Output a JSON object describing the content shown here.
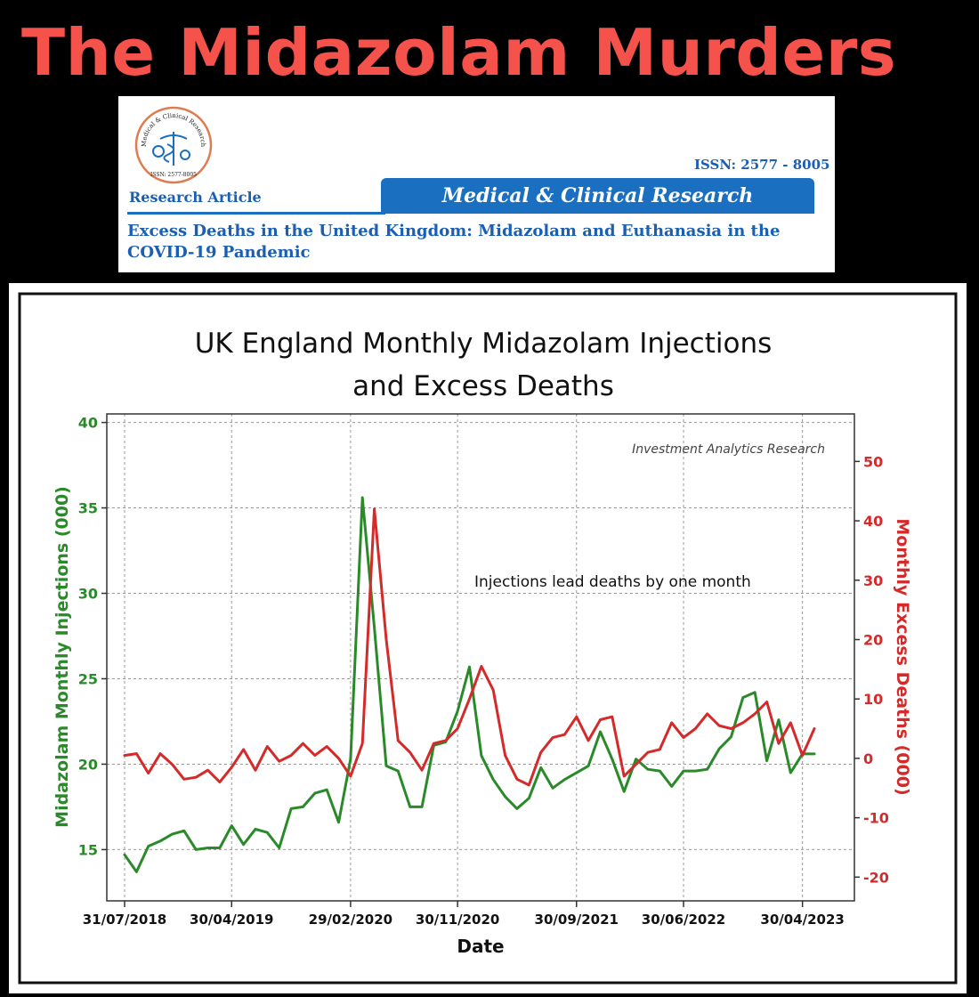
{
  "headline": "The Midazolam Murders",
  "banner": {
    "logo_text_top": "Medical & Clinical Research",
    "logo_issn": "ISSN: 2577-8005",
    "article_type": "Research Article",
    "issn": "ISSN: 2577 - 8005",
    "journal": "Medical & Clinical Research",
    "article_title": "Excess Deaths in the United Kingdom: Midazolam and Euthanasia in the COVID-19 Pandemic"
  },
  "colors": {
    "headline": "#f4524b",
    "journal_blue": "#1a6fc0",
    "injections": "#2a8a2a",
    "deaths": "#d42a2a"
  },
  "chart_data": {
    "type": "line",
    "title_line1": "UK England Monthly Midazolam Injections",
    "title_line2": "and Excess Deaths",
    "watermark": "Investment Analytics Research",
    "annotation": "Injections lead deaths by one month",
    "xlabel": "Date",
    "ylabel_left": "Midazolam Monthly Injections (000)",
    "ylabel_right": "Monthly Excess Deaths (000)",
    "x_tick_labels": [
      "31/07/2018",
      "30/04/2019",
      "29/02/2020",
      "30/11/2020",
      "30/09/2021",
      "30/06/2022",
      "30/04/2023"
    ],
    "x_tick_index": [
      0,
      9,
      19,
      28,
      38,
      47,
      57
    ],
    "ylim_left": [
      12,
      40.5
    ],
    "yticks_left": [
      15,
      20,
      25,
      30,
      35,
      40
    ],
    "ylim_right": [
      -24,
      58
    ],
    "yticks_right": [
      -20,
      -10,
      0,
      10,
      20,
      30,
      40,
      50
    ],
    "grid": true,
    "series": [
      {
        "name": "Midazolam Monthly Injections (000)",
        "axis": "left",
        "values": [
          14.7,
          13.7,
          15.2,
          15.5,
          15.9,
          16.1,
          15.0,
          15.1,
          15.1,
          16.4,
          15.3,
          16.2,
          16.0,
          15.1,
          17.4,
          17.5,
          18.3,
          18.5,
          16.6,
          20.3,
          35.6,
          28.0,
          19.9,
          19.6,
          17.5,
          17.5,
          21.1,
          21.3,
          23.1,
          25.7,
          20.5,
          19.1,
          18.1,
          17.4,
          18.0,
          19.8,
          18.6,
          19.1,
          19.5,
          19.9,
          21.9,
          20.3,
          18.4,
          20.3,
          19.7,
          19.6,
          18.7,
          19.6,
          19.6,
          19.7,
          20.9,
          21.6,
          23.9,
          24.2,
          20.2,
          22.6,
          19.5,
          20.6,
          20.6
        ]
      },
      {
        "name": "Monthly Excess Deaths (000)",
        "axis": "right",
        "values": [
          0.5,
          0.8,
          -2.5,
          0.8,
          -1.0,
          -3.5,
          -3.2,
          -2.0,
          -4.0,
          -1.5,
          1.5,
          -2.0,
          2.0,
          -0.5,
          0.5,
          2.5,
          0.5,
          2.0,
          0.0,
          -3.0,
          2.5,
          42.0,
          20.0,
          3.0,
          1.0,
          -2.0,
          2.5,
          3.0,
          5.0,
          10.0,
          15.5,
          11.5,
          0.5,
          -3.5,
          -4.5,
          1.0,
          3.5,
          4.0,
          7.0,
          3.0,
          6.5,
          7.0,
          -3.0,
          -1.0,
          1.0,
          1.5,
          6.0,
          3.5,
          5.0,
          7.5,
          5.5,
          5.0,
          6.0,
          7.5,
          9.5,
          2.5,
          6.0,
          0.5,
          5.0
        ]
      }
    ]
  }
}
